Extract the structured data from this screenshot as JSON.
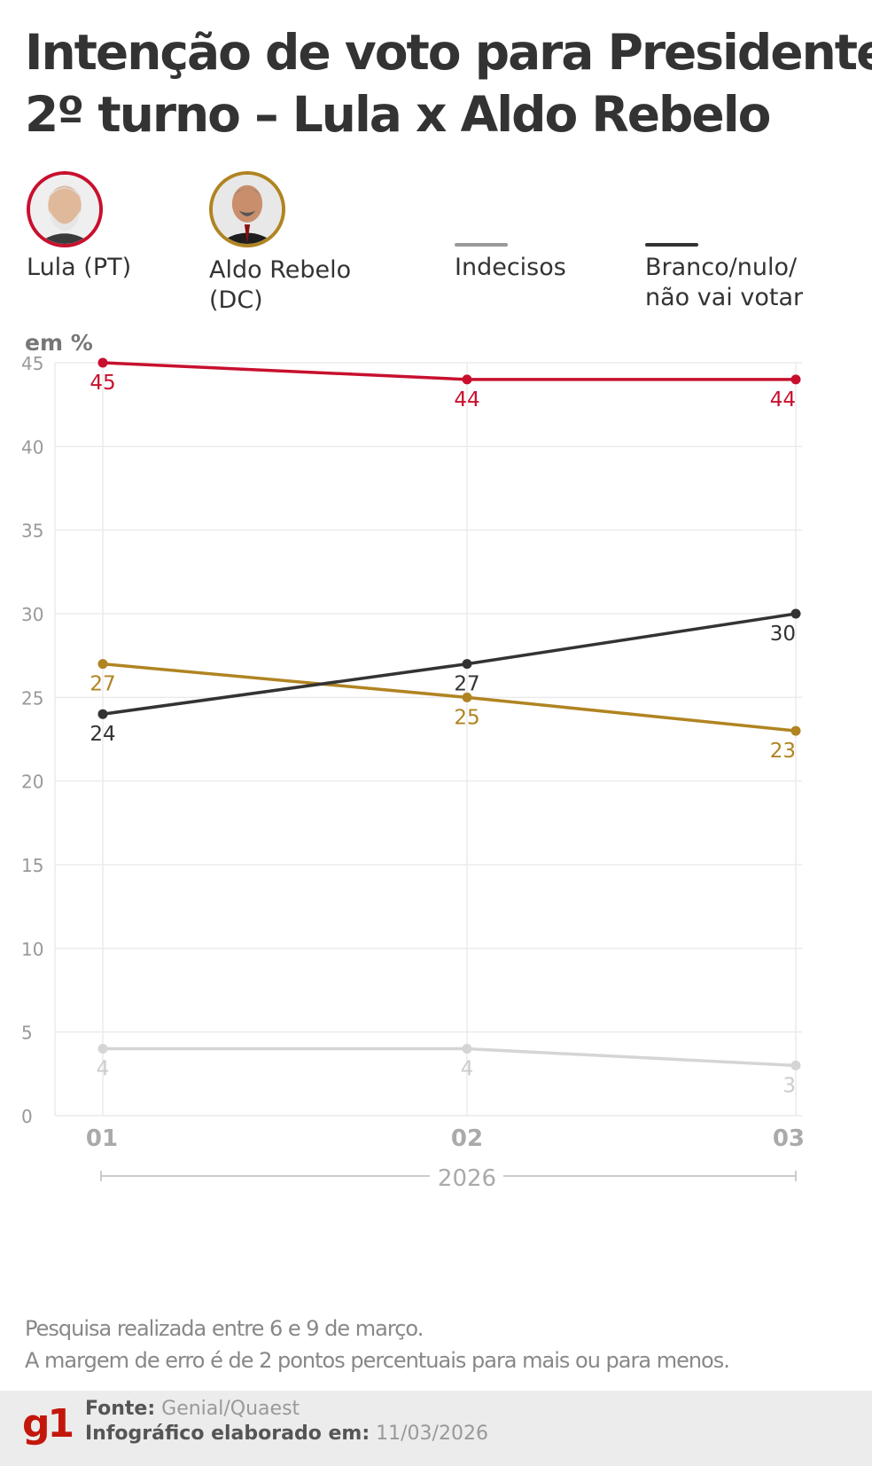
{
  "title": {
    "line1": "Intenção de voto para Presidente",
    "line2": "2º turno – Lula x Aldo Rebelo"
  },
  "legend": {
    "lula": {
      "label": "Lula (PT)",
      "color": "#c8102e",
      "icon": "lula-portrait"
    },
    "aldo": {
      "label": "Aldo Rebelo\n(DC)",
      "color": "#b08422",
      "icon": "aldo-rebelo-portrait"
    },
    "indecisos": {
      "label": "Indecisos",
      "color": "#999999"
    },
    "branco": {
      "label": "Branco/nulo/\nnão vai votar",
      "color": "#333333"
    }
  },
  "unit_label": "em %",
  "chart_data": {
    "type": "line",
    "x": [
      "01",
      "02",
      "03"
    ],
    "xgroup": "2026",
    "ylim": [
      0,
      45
    ],
    "yticks": [
      0,
      5,
      10,
      15,
      20,
      25,
      30,
      35,
      40,
      45
    ],
    "grid": true,
    "series": [
      {
        "name": "Lula (PT)",
        "key": "lula",
        "values": [
          45,
          44,
          44
        ],
        "color": "#c8102e",
        "label_pos": "below"
      },
      {
        "name": "Aldo Rebelo (DC)",
        "key": "aldo",
        "values": [
          27,
          25,
          23
        ],
        "color": "#b08422",
        "label_pos": "below"
      },
      {
        "name": "Branco/nulo/não vai votar",
        "key": "branco",
        "values": [
          24,
          27,
          30
        ],
        "color": "#333333",
        "label_pos": "below"
      },
      {
        "name": "Indecisos",
        "key": "indecisos",
        "values": [
          4,
          4,
          3
        ],
        "color": "#d5d5d5",
        "label_pos": "below"
      }
    ]
  },
  "notes": {
    "line1": "Pesquisa realizada entre 6 e 9 de março.",
    "line2": "A margem de erro é de 2 pontos percentuais para mais ou para menos."
  },
  "footer": {
    "logo": "g1",
    "source_label": "Fonte:",
    "source_value": "Genial/Quaest",
    "date_label": "Infográfico elaborado em:",
    "date_value": "11/03/2026"
  }
}
